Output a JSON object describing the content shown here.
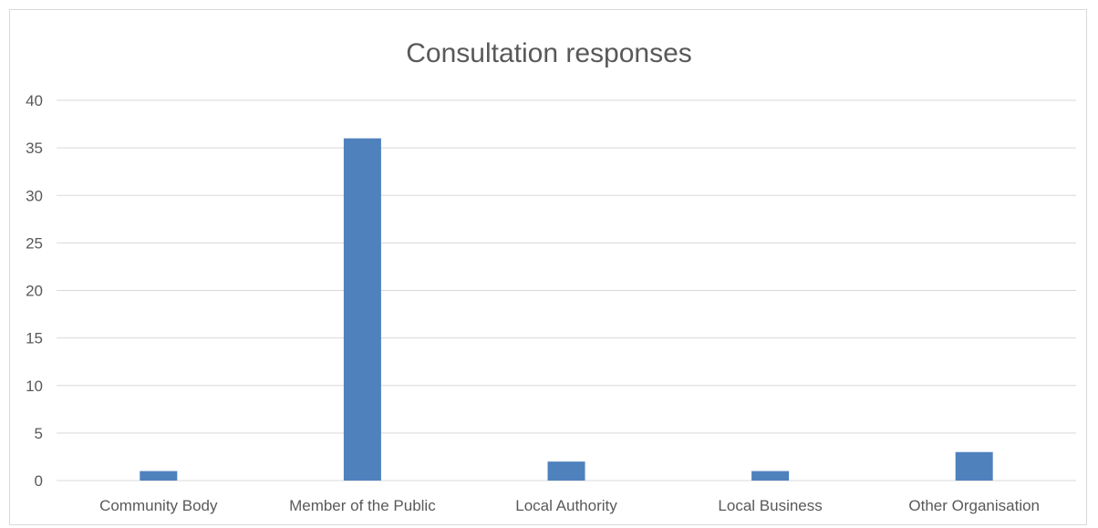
{
  "chart_data": {
    "type": "bar",
    "title": "Consultation responses",
    "categories": [
      "Community Body",
      "Member of the Public",
      "Local Authority",
      "Local Business",
      "Other Organisation"
    ],
    "values": [
      1,
      36,
      2,
      1,
      3
    ],
    "xlabel": "",
    "ylabel": "",
    "ylim": [
      0,
      40
    ],
    "yticks": [
      0,
      5,
      10,
      15,
      20,
      25,
      30,
      35,
      40
    ],
    "grid": true,
    "legend": "none",
    "colors": {
      "bar": "#4f81bd",
      "grid": "#d9d9d9",
      "text": "#595959"
    }
  }
}
